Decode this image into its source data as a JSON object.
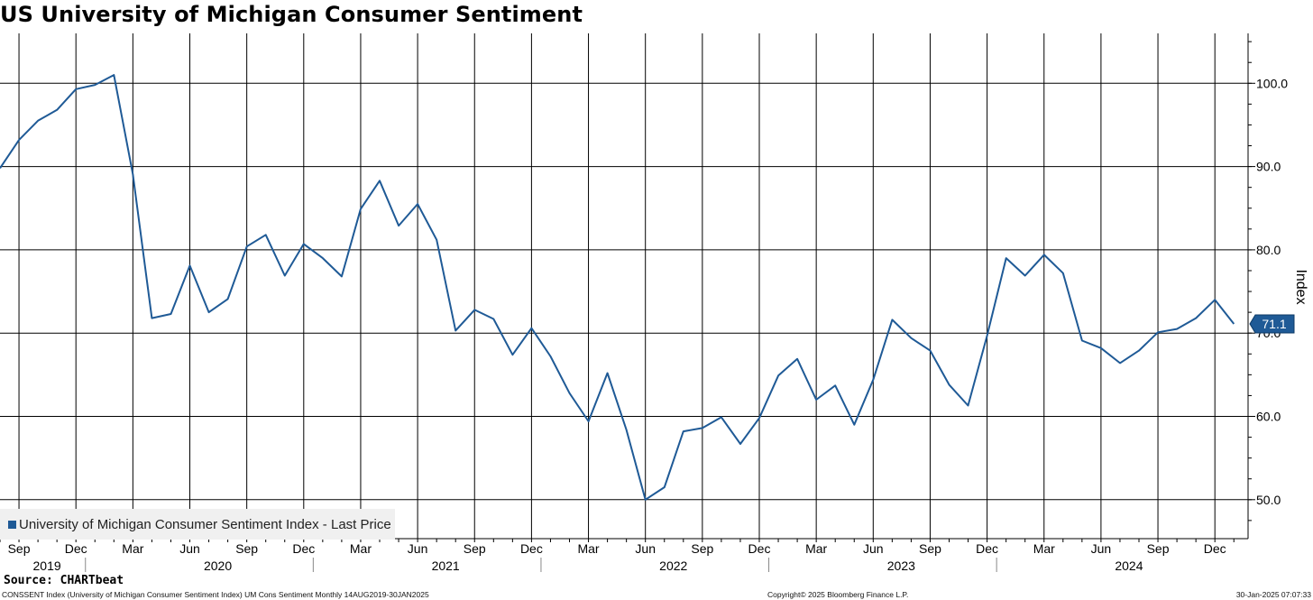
{
  "title": "US University of Michigan Consumer Sentiment",
  "source": "Source: CHARTbeat",
  "footer": {
    "left": "CONSSENT Index (University of Michigan Consumer Sentiment Index) UM Cons Sentiment  Monthly 14AUG2019-30JAN2025",
    "center": "Copyright© 2025 Bloomberg Finance L.P.",
    "right": "30-Jan-2025 07:07:33"
  },
  "colors": {
    "line": "#1f5a96",
    "grid": "#000000",
    "label_bg": "#1f5a96"
  },
  "chart_data": {
    "type": "line",
    "title": "US University of Michigan Consumer Sentiment",
    "ylabel": "Index",
    "ylim": [
      45,
      105
    ],
    "yticks": [
      "100.0",
      "90.0",
      "80.0",
      "70.0",
      "60.0",
      "50.0"
    ],
    "ytick_values": [
      100,
      90,
      80,
      70,
      60,
      50
    ],
    "grid": true,
    "legend": {
      "placement": "bottom-left",
      "entries": [
        "University of Michigan Consumer Sentiment Index - Last Price"
      ]
    },
    "last_value_label": "71.1",
    "x_month_labels": [
      "Sep",
      "Dec",
      "Mar",
      "Jun",
      "Sep",
      "Dec",
      "Mar",
      "Jun",
      "Sep",
      "Dec",
      "Mar",
      "Jun",
      "Sep",
      "Dec",
      "Mar",
      "Jun",
      "Sep",
      "Dec",
      "Mar",
      "Jun",
      "Sep",
      "Dec"
    ],
    "x_month_indices": [
      1,
      4,
      7,
      10,
      13,
      16,
      19,
      22,
      25,
      28,
      31,
      34,
      37,
      40,
      43,
      46,
      49,
      52,
      55,
      58,
      61,
      64
    ],
    "x_year_labels": [
      "2019",
      "2020",
      "2021",
      "2022",
      "2023",
      "2024"
    ],
    "x_year_centers": [
      2,
      11,
      23,
      35,
      47,
      59
    ],
    "x_year_separators": [
      5,
      17,
      29,
      41,
      53
    ],
    "series": [
      {
        "name": "University of Michigan Consumer Sentiment Index - Last Price",
        "x": [
          "Aug 2019",
          "Sep 2019",
          "Oct 2019",
          "Nov 2019",
          "Dec 2019",
          "Jan 2020",
          "Feb 2020",
          "Mar 2020",
          "Apr 2020",
          "May 2020",
          "Jun 2020",
          "Jul 2020",
          "Aug 2020",
          "Sep 2020",
          "Oct 2020",
          "Nov 2020",
          "Dec 2020",
          "Jan 2021",
          "Feb 2021",
          "Mar 2021",
          "Apr 2021",
          "May 2021",
          "Jun 2021",
          "Jul 2021",
          "Aug 2021",
          "Sep 2021",
          "Oct 2021",
          "Nov 2021",
          "Dec 2021",
          "Jan 2022",
          "Feb 2022",
          "Mar 2022",
          "Apr 2022",
          "May 2022",
          "Jun 2022",
          "Jul 2022",
          "Aug 2022",
          "Sep 2022",
          "Oct 2022",
          "Nov 2022",
          "Dec 2022",
          "Jan 2023",
          "Feb 2023",
          "Mar 2023",
          "Apr 2023",
          "May 2023",
          "Jun 2023",
          "Jul 2023",
          "Aug 2023",
          "Sep 2023",
          "Oct 2023",
          "Nov 2023",
          "Dec 2023",
          "Jan 2024",
          "Feb 2024",
          "Mar 2024",
          "Apr 2024",
          "May 2024",
          "Jun 2024",
          "Jul 2024",
          "Aug 2024",
          "Sep 2024",
          "Oct 2024",
          "Nov 2024",
          "Dec 2024",
          "Jan 2025"
        ],
        "values": [
          89.8,
          93.2,
          95.5,
          96.8,
          99.3,
          99.8,
          101.0,
          89.1,
          71.8,
          72.3,
          78.1,
          72.5,
          74.1,
          80.4,
          81.8,
          76.9,
          80.7,
          79.0,
          76.8,
          84.9,
          88.3,
          82.9,
          85.5,
          81.2,
          70.3,
          72.8,
          71.7,
          67.4,
          70.6,
          67.2,
          62.8,
          59.4,
          65.2,
          58.4,
          50.0,
          51.5,
          58.2,
          58.6,
          59.9,
          56.7,
          59.8,
          64.9,
          66.9,
          62.0,
          63.7,
          59.0,
          64.4,
          71.6,
          69.4,
          67.9,
          63.8,
          61.3,
          69.7,
          79.0,
          76.9,
          79.4,
          77.2,
          69.1,
          68.2,
          66.4,
          67.9,
          70.1,
          70.5,
          71.8,
          74.0,
          71.1
        ]
      }
    ]
  }
}
